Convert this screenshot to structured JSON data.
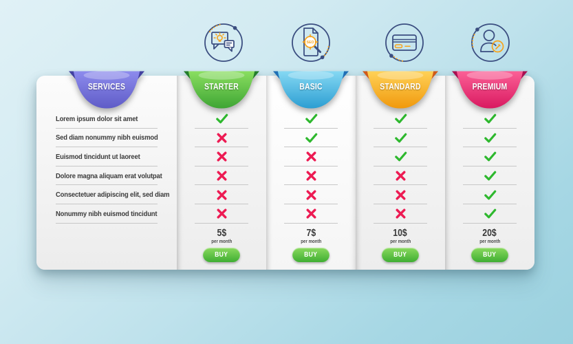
{
  "icons": [
    {
      "name": "idea-message-icon"
    },
    {
      "name": "seo-file-icon"
    },
    {
      "name": "credit-card-icon"
    },
    {
      "name": "edit-user-icon"
    }
  ],
  "colors": {
    "check": "#2eb82e",
    "cross": "#ed1b53",
    "icon_line": "#3b4e80",
    "icon_accent": "#f7a31b",
    "buy_top": "#8ad95e",
    "buy_bottom": "#3fae33"
  },
  "pricing_table": {
    "services_column": {
      "header": "SERVICES",
      "ribbon_colors": {
        "top": "#8d8bed",
        "bottom": "#5f5cc7",
        "fold": "#4240a0"
      },
      "rows": [
        "Lorem ipsum dolor sit amet",
        "Sed diam nonummy nibh euismod",
        "Euismod tincidunt ut laoreet",
        "Dolore magna aliquam erat volutpat",
        "Consectetuer adipiscing elit, sed diam",
        "Nonummy nibh euismod tincidunt"
      ]
    },
    "plans": [
      {
        "name": "STARTER",
        "ribbon_colors": {
          "top": "#8ade60",
          "bottom": "#3ea534",
          "fold": "#237d2b"
        },
        "features": [
          true,
          false,
          false,
          false,
          false,
          false
        ],
        "price": "5$",
        "period": "per month",
        "buy_label": "BUY"
      },
      {
        "name": "BASIC",
        "ribbon_colors": {
          "top": "#85d8f3",
          "bottom": "#2c9ed2",
          "fold": "#1f6fb5"
        },
        "features": [
          true,
          true,
          false,
          false,
          false,
          false
        ],
        "price": "7$",
        "period": "per month",
        "buy_label": "BUY"
      },
      {
        "name": "STANDARD",
        "ribbon_colors": {
          "top": "#ffd157",
          "bottom": "#f0990d",
          "fold": "#cf5a1a"
        },
        "features": [
          true,
          true,
          true,
          false,
          false,
          false
        ],
        "price": "10$",
        "period": "per month",
        "buy_label": "BUY"
      },
      {
        "name": "PREMIUM",
        "ribbon_colors": {
          "top": "#fb6096",
          "bottom": "#d91960",
          "fold": "#a81050"
        },
        "features": [
          true,
          true,
          true,
          true,
          true,
          true
        ],
        "price": "20$",
        "period": "per month",
        "buy_label": "BUY"
      }
    ]
  },
  "chart_data": {
    "type": "table",
    "title": "Pricing comparison table",
    "columns": [
      "SERVICES",
      "STARTER",
      "BASIC",
      "STANDARD",
      "PREMIUM"
    ],
    "rows": [
      {
        "service": "Lorem ipsum dolor sit amet",
        "STARTER": true,
        "BASIC": true,
        "STANDARD": true,
        "PREMIUM": true
      },
      {
        "service": "Sed diam nonummy nibh euismod",
        "STARTER": false,
        "BASIC": true,
        "STANDARD": true,
        "PREMIUM": true
      },
      {
        "service": "Euismod tincidunt ut laoreet",
        "STARTER": false,
        "BASIC": false,
        "STANDARD": true,
        "PREMIUM": true
      },
      {
        "service": "Dolore magna aliquam erat volutpat",
        "STARTER": false,
        "BASIC": false,
        "STANDARD": false,
        "PREMIUM": true
      },
      {
        "service": "Consectetuer adipiscing elit, sed diam",
        "STARTER": false,
        "BASIC": false,
        "STANDARD": false,
        "PREMIUM": true
      },
      {
        "service": "Nonummy nibh euismod tincidunt",
        "STARTER": false,
        "BASIC": false,
        "STANDARD": false,
        "PREMIUM": true
      }
    ],
    "prices": {
      "STARTER": "5$ per month",
      "BASIC": "7$ per month",
      "STANDARD": "10$ per month",
      "PREMIUM": "20$ per month"
    }
  }
}
